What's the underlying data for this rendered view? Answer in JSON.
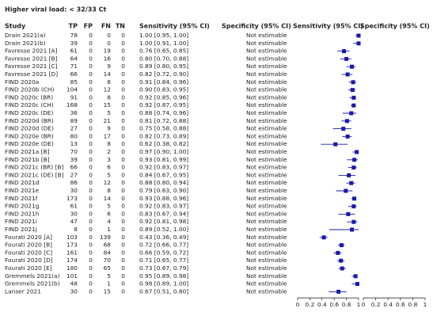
{
  "chart_data": {
    "type": "forest",
    "title": "Higher viral load: < 32/33 Ct",
    "study_header": "Study",
    "columns": [
      "TP",
      "FP",
      "FN",
      "TN",
      "Sensitivity (95% CI)",
      "Specificity (95% CI)"
    ],
    "color": "#1a1aa6",
    "sens_axis": {
      "title": "Sensitivity (95% CI)",
      "xlim": [
        0,
        1
      ],
      "xticks": [
        0,
        0.2,
        0.4,
        0.6,
        0.8,
        1
      ]
    },
    "spec_axis": {
      "title": "Specificity (95% CI)",
      "xlim": [
        0,
        1
      ],
      "xticks": [
        0,
        0.2,
        0.4,
        0.6,
        0.8,
        1
      ]
    },
    "rows": [
      {
        "study": "Drain 2021(a)",
        "tp": 78,
        "fp": 0,
        "fn": 0,
        "tn": 0,
        "sens": 1.0,
        "sens_lo": 0.95,
        "sens_hi": 1.0,
        "sens_label": "1.00 [0.95, 1.00]",
        "spec_label": "Not estimable"
      },
      {
        "study": "Drain 2021(b)",
        "tp": 39,
        "fp": 0,
        "fn": 0,
        "tn": 0,
        "sens": 1.0,
        "sens_lo": 0.91,
        "sens_hi": 1.0,
        "sens_label": "1.00 [0.91, 1.00]",
        "spec_label": "Not estimable"
      },
      {
        "study": "Favresse 2021 [A]",
        "tp": 61,
        "fp": 0,
        "fn": 19,
        "tn": 0,
        "sens": 0.76,
        "sens_lo": 0.65,
        "sens_hi": 0.85,
        "sens_label": "0.76 [0.65, 0.85]",
        "spec_label": "Not estimable"
      },
      {
        "study": "Favresse 2021 [B]",
        "tp": 64,
        "fp": 0,
        "fn": 16,
        "tn": 0,
        "sens": 0.8,
        "sens_lo": 0.7,
        "sens_hi": 0.88,
        "sens_label": "0.80 [0.70, 0.88]",
        "spec_label": "Not estimable"
      },
      {
        "study": "Favresse 2021 [C]",
        "tp": 71,
        "fp": 0,
        "fn": 9,
        "tn": 0,
        "sens": 0.89,
        "sens_lo": 0.8,
        "sens_hi": 0.95,
        "sens_label": "0.89 [0.80, 0.95]",
        "spec_label": "Not estimable"
      },
      {
        "study": "Favresse 2021 [D]",
        "tp": 66,
        "fp": 0,
        "fn": 14,
        "tn": 0,
        "sens": 0.82,
        "sens_lo": 0.72,
        "sens_hi": 0.9,
        "sens_label": "0.82 [0.72, 0.90]",
        "spec_label": "Not estimable"
      },
      {
        "study": "FIND 2020a",
        "tp": 85,
        "fp": 0,
        "fn": 8,
        "tn": 0,
        "sens": 0.91,
        "sens_lo": 0.84,
        "sens_hi": 0.96,
        "sens_label": "0.91 [0.84, 0.96]",
        "spec_label": "Not estimable"
      },
      {
        "study": "FIND 2020b (CH)",
        "tp": 104,
        "fp": 0,
        "fn": 12,
        "tn": 0,
        "sens": 0.9,
        "sens_lo": 0.83,
        "sens_hi": 0.95,
        "sens_label": "0.90 [0.83, 0.95]",
        "spec_label": "Not estimable"
      },
      {
        "study": "FIND 2020c (BR)",
        "tp": 91,
        "fp": 0,
        "fn": 8,
        "tn": 0,
        "sens": 0.92,
        "sens_lo": 0.85,
        "sens_hi": 0.96,
        "sens_label": "0.92 [0.85, 0.96]",
        "spec_label": "Not estimable"
      },
      {
        "study": "FIND 2020c (CH)",
        "tp": 168,
        "fp": 0,
        "fn": 15,
        "tn": 0,
        "sens": 0.92,
        "sens_lo": 0.87,
        "sens_hi": 0.95,
        "sens_label": "0.92 [0.87, 0.95]",
        "spec_label": "Not estimable"
      },
      {
        "study": "FIND 2020c (DE)",
        "tp": 36,
        "fp": 0,
        "fn": 5,
        "tn": 0,
        "sens": 0.88,
        "sens_lo": 0.74,
        "sens_hi": 0.96,
        "sens_label": "0.88 [0.74, 0.96]",
        "spec_label": "Not estimable"
      },
      {
        "study": "FIND 2020d (BR)",
        "tp": 89,
        "fp": 0,
        "fn": 21,
        "tn": 0,
        "sens": 0.81,
        "sens_lo": 0.72,
        "sens_hi": 0.88,
        "sens_label": "0.81 [0.72, 0.88]",
        "spec_label": "Not estimable"
      },
      {
        "study": "FIND 2020d (DE)",
        "tp": 27,
        "fp": 0,
        "fn": 9,
        "tn": 0,
        "sens": 0.75,
        "sens_lo": 0.58,
        "sens_hi": 0.88,
        "sens_label": "0.75 [0.58, 0.88]",
        "spec_label": "Not estimable"
      },
      {
        "study": "FIND 2020e (BR)",
        "tp": 80,
        "fp": 0,
        "fn": 17,
        "tn": 0,
        "sens": 0.82,
        "sens_lo": 0.73,
        "sens_hi": 0.89,
        "sens_label": "0.82 [0.73, 0.89]",
        "spec_label": "Not estimable"
      },
      {
        "study": "FIND 2020e (DE)",
        "tp": 13,
        "fp": 0,
        "fn": 8,
        "tn": 0,
        "sens": 0.62,
        "sens_lo": 0.38,
        "sens_hi": 0.82,
        "sens_label": "0.62 [0.38, 0.82]",
        "spec_label": "Not estimable"
      },
      {
        "study": "FIND 2021a [B]",
        "tp": 70,
        "fp": 0,
        "fn": 2,
        "tn": 0,
        "sens": 0.97,
        "sens_lo": 0.9,
        "sens_hi": 1.0,
        "sens_label": "0.97 [0.90, 1.00]",
        "spec_label": "Not estimable"
      },
      {
        "study": "FIND 2021b [B]",
        "tp": 39,
        "fp": 0,
        "fn": 3,
        "tn": 0,
        "sens": 0.93,
        "sens_lo": 0.81,
        "sens_hi": 0.99,
        "sens_label": "0.93 [0.81, 0.99]",
        "spec_label": "Not estimable"
      },
      {
        "study": "FIND 2021c (BR) [B]",
        "tp": 66,
        "fp": 0,
        "fn": 6,
        "tn": 0,
        "sens": 0.92,
        "sens_lo": 0.83,
        "sens_hi": 0.97,
        "sens_label": "0.92 [0.83, 0.97]",
        "spec_label": "Not estimable"
      },
      {
        "study": "FIND 2021c (DE) [B]",
        "tp": 27,
        "fp": 0,
        "fn": 5,
        "tn": 0,
        "sens": 0.84,
        "sens_lo": 0.67,
        "sens_hi": 0.95,
        "sens_label": "0.84 [0.67, 0.95]",
        "spec_label": "Not estimable"
      },
      {
        "study": "FIND 2021d",
        "tp": 86,
        "fp": 0,
        "fn": 12,
        "tn": 0,
        "sens": 0.88,
        "sens_lo": 0.8,
        "sens_hi": 0.94,
        "sens_label": "0.88 [0.80, 0.94]",
        "spec_label": "Not estimable"
      },
      {
        "study": "FIND 2021e",
        "tp": 30,
        "fp": 0,
        "fn": 8,
        "tn": 0,
        "sens": 0.79,
        "sens_lo": 0.63,
        "sens_hi": 0.9,
        "sens_label": "0.79 [0.63, 0.90]",
        "spec_label": "Not estimable"
      },
      {
        "study": "FIND 2021f",
        "tp": 173,
        "fp": 0,
        "fn": 14,
        "tn": 0,
        "sens": 0.93,
        "sens_lo": 0.88,
        "sens_hi": 0.96,
        "sens_label": "0.93 [0.88, 0.96]",
        "spec_label": "Not estimable"
      },
      {
        "study": "FIND 2021g",
        "tp": 61,
        "fp": 0,
        "fn": 5,
        "tn": 0,
        "sens": 0.92,
        "sens_lo": 0.83,
        "sens_hi": 0.97,
        "sens_label": "0.92 [0.83, 0.97]",
        "spec_label": "Not estimable"
      },
      {
        "study": "FIND 2021h",
        "tp": 30,
        "fp": 0,
        "fn": 6,
        "tn": 0,
        "sens": 0.83,
        "sens_lo": 0.67,
        "sens_hi": 0.94,
        "sens_label": "0.83 [0.67, 0.94]",
        "spec_label": "Not estimable"
      },
      {
        "study": "FIND 2021i",
        "tp": 47,
        "fp": 0,
        "fn": 4,
        "tn": 0,
        "sens": 0.92,
        "sens_lo": 0.81,
        "sens_hi": 0.98,
        "sens_label": "0.92 [0.81, 0.98]",
        "spec_label": "Not estimable"
      },
      {
        "study": "FIND 2021j",
        "tp": 8,
        "fp": 0,
        "fn": 1,
        "tn": 0,
        "sens": 0.89,
        "sens_lo": 0.52,
        "sens_hi": 1.0,
        "sens_label": "0.89 [0.52, 1.00]",
        "spec_label": "Not estimable"
      },
      {
        "study": "Fourati 2020 [A]",
        "tp": 103,
        "fp": 0,
        "fn": 139,
        "tn": 0,
        "sens": 0.43,
        "sens_lo": 0.36,
        "sens_hi": 0.49,
        "sens_label": "0.43 [0.36, 0.49]",
        "spec_label": "Not estimable"
      },
      {
        "study": "Fourati 2020 [B]",
        "tp": 173,
        "fp": 0,
        "fn": 68,
        "tn": 0,
        "sens": 0.72,
        "sens_lo": 0.66,
        "sens_hi": 0.77,
        "sens_label": "0.72 [0.66, 0.77]",
        "spec_label": "Not estimable"
      },
      {
        "study": "Fourati 2020 [C]",
        "tp": 161,
        "fp": 0,
        "fn": 84,
        "tn": 0,
        "sens": 0.66,
        "sens_lo": 0.59,
        "sens_hi": 0.72,
        "sens_label": "0.66 [0.59, 0.72]",
        "spec_label": "Not estimable"
      },
      {
        "study": "Fourati 2020 [D]",
        "tp": 174,
        "fp": 0,
        "fn": 70,
        "tn": 0,
        "sens": 0.71,
        "sens_lo": 0.65,
        "sens_hi": 0.77,
        "sens_label": "0.71 [0.65, 0.77]",
        "spec_label": "Not estimable"
      },
      {
        "study": "Fourati 2020 [E]",
        "tp": 180,
        "fp": 0,
        "fn": 65,
        "tn": 0,
        "sens": 0.73,
        "sens_lo": 0.67,
        "sens_hi": 0.79,
        "sens_label": "0.73 [0.67, 0.79]",
        "spec_label": "Not estimable"
      },
      {
        "study": "Gremmels 2021(a)",
        "tp": 101,
        "fp": 0,
        "fn": 5,
        "tn": 0,
        "sens": 0.95,
        "sens_lo": 0.89,
        "sens_hi": 0.98,
        "sens_label": "0.95 [0.89, 0.98]",
        "spec_label": "Not estimable"
      },
      {
        "study": "Gremmels 2021(b)",
        "tp": 48,
        "fp": 0,
        "fn": 1,
        "tn": 0,
        "sens": 0.98,
        "sens_lo": 0.89,
        "sens_hi": 1.0,
        "sens_label": "0.98 [0.89, 1.00]",
        "spec_label": "Not estimable"
      },
      {
        "study": "Lanser 2021",
        "tp": 30,
        "fp": 0,
        "fn": 15,
        "tn": 0,
        "sens": 0.67,
        "sens_lo": 0.51,
        "sens_hi": 0.8,
        "sens_label": "0.67 [0.51, 0.80]",
        "spec_label": "Not estimable"
      }
    ]
  }
}
